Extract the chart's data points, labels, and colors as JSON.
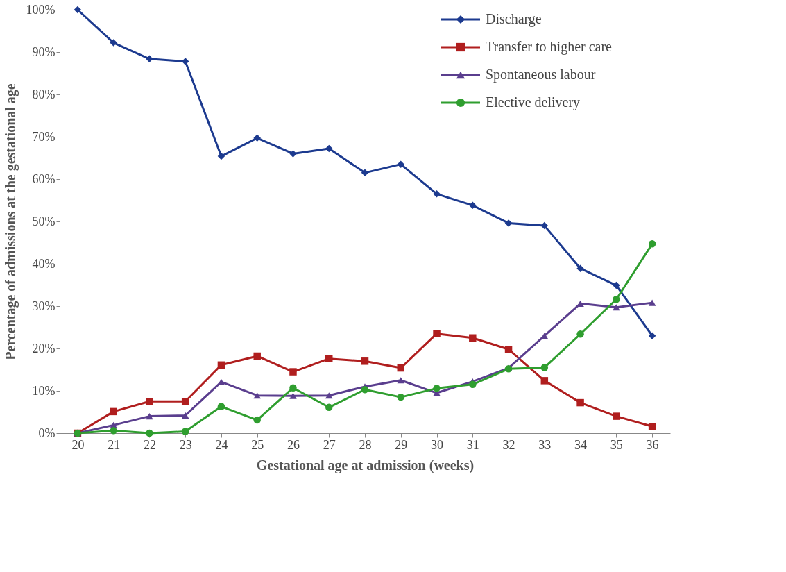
{
  "chart_data": {
    "type": "line",
    "xlabel": "Gestational age at admission (weeks)",
    "ylabel": "Percentage of admissions at the gestational age",
    "categories": [
      "20",
      "21",
      "22",
      "23",
      "24",
      "25",
      "26",
      "27",
      "28",
      "29",
      "30",
      "31",
      "32",
      "33",
      "34",
      "35",
      "36"
    ],
    "ylim": [
      0,
      100
    ],
    "yticks": [
      {
        "value": 0,
        "label": "0%"
      },
      {
        "value": 10,
        "label": "10%"
      },
      {
        "value": 20,
        "label": "20%"
      },
      {
        "value": 30,
        "label": "30%"
      },
      {
        "value": 40,
        "label": "40%"
      },
      {
        "value": 50,
        "label": "50%"
      },
      {
        "value": 60,
        "label": "60%"
      },
      {
        "value": 70,
        "label": "70%"
      },
      {
        "value": 80,
        "label": "80%"
      },
      {
        "value": 90,
        "label": "90%"
      },
      {
        "value": 100,
        "label": "100%"
      }
    ],
    "grid": false,
    "legend": "top right",
    "line_style": "solid",
    "series": [
      {
        "name": "Discharge",
        "color": "#1c3a8f",
        "marker": "diamond",
        "values": [
          100,
          92.2,
          88.4,
          87.8,
          65.4,
          69.7,
          66.0,
          67.2,
          61.5,
          63.5,
          56.5,
          53.8,
          49.6,
          49.0,
          38.9,
          34.9,
          23.0
        ]
      },
      {
        "name": "Transfer to higher care",
        "color": "#b01e1e",
        "marker": "square",
        "values": [
          0,
          5.1,
          7.5,
          7.5,
          16.1,
          18.2,
          14.5,
          17.6,
          17.0,
          15.4,
          23.5,
          22.5,
          19.8,
          12.4,
          7.2,
          4.0,
          1.6
        ]
      },
      {
        "name": "Spontaneous labour",
        "color": "#5a3e8e",
        "marker": "triangle",
        "values": [
          0,
          1.9,
          4.0,
          4.2,
          12.1,
          8.9,
          8.8,
          8.9,
          11.0,
          12.5,
          9.5,
          12.2,
          15.4,
          23.0,
          30.6,
          29.7,
          30.8
        ]
      },
      {
        "name": "Elective delivery",
        "color": "#2f9e2f",
        "marker": "circle",
        "values": [
          0,
          0.6,
          0,
          0.4,
          6.3,
          3.1,
          10.7,
          6.1,
          10.3,
          8.5,
          10.6,
          11.5,
          15.2,
          15.5,
          23.4,
          31.6,
          44.7
        ]
      }
    ]
  }
}
